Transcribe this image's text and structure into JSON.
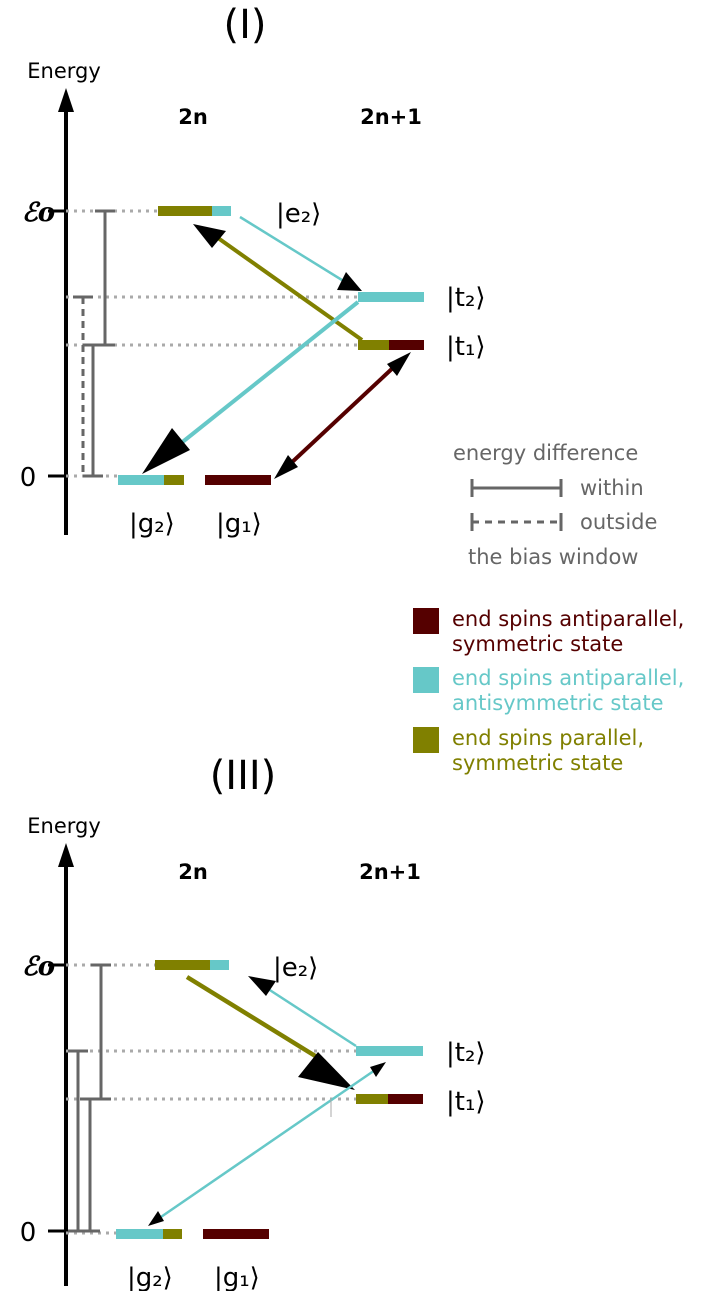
{
  "colors": {
    "maroon": "#550000",
    "cyan": "#66c8c8",
    "olive": "#808000",
    "gray": "#666666",
    "dots": "#aaaaaa",
    "axis": "#000000"
  },
  "panels": [
    {
      "title": "(I)",
      "ylabel": "Energy",
      "col_even": "2n",
      "col_odd": "2n+1",
      "tick_top": "ℰo",
      "tick_zero": "0",
      "kets": {
        "e2": "|e₂⟩",
        "t2": "|t₂⟩",
        "t1": "|t₁⟩",
        "g2": "|g₂⟩",
        "g1": "|g₁⟩"
      }
    },
    {
      "title": "(III)",
      "ylabel": "Energy",
      "col_even": "2n",
      "col_odd": "2n+1",
      "tick_top": "ℰo",
      "tick_zero": "0",
      "kets": {
        "e2": "|e₂⟩",
        "t2": "|t₂⟩",
        "t1": "|t₁⟩",
        "g2": "|g₂⟩",
        "g1": "|g₁⟩"
      }
    }
  ],
  "key": {
    "title": "energy difference",
    "within": "within",
    "outside": "outside",
    "footer": "the bias window"
  },
  "legend": [
    {
      "line1": "end spins antiparallel,",
      "line2": "symmetric state",
      "color": "#550000"
    },
    {
      "line1": "end spins antiparallel,",
      "line2": "antisymmetric state",
      "color": "#66c8c8"
    },
    {
      "line1": "end spins parallel,",
      "line2": "symmetric state",
      "color": "#808000"
    }
  ]
}
